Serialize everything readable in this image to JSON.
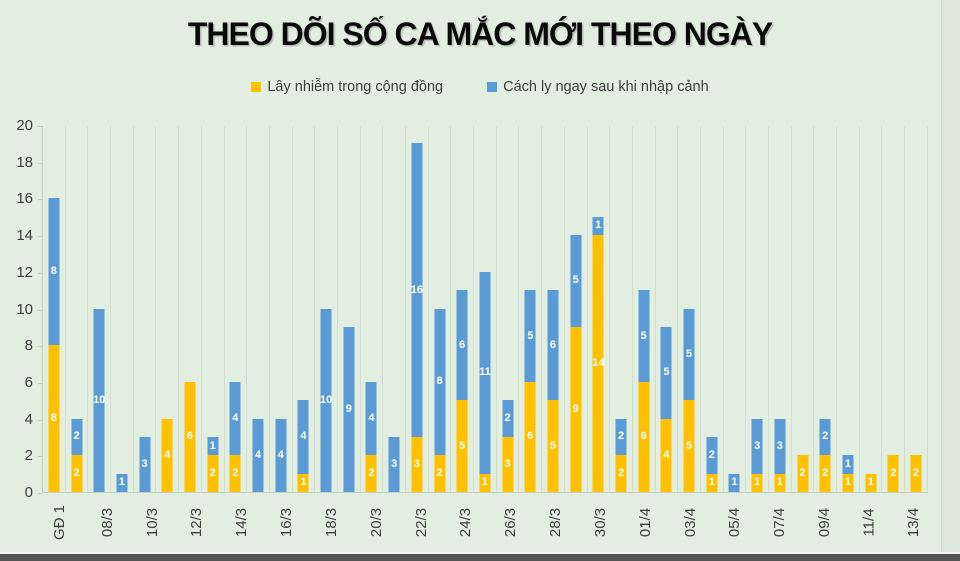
{
  "title": "THEO DÕI SỐ CA MẮC MỚI THEO NGÀY",
  "legend": [
    {
      "label": "Lây nhiễm trong cộng đồng",
      "color": "#FFC000"
    },
    {
      "label": "Cách ly ngay sau khi nhập cảnh",
      "color": "#5B9BD5"
    }
  ],
  "colors": {
    "background": "#e2efe0",
    "bar_community": "#FFC000",
    "bar_imported": "#5B9BD5",
    "gridline": "#d4dcd2",
    "axis_line": "#c3cdc1",
    "axis_text": "#3d3d3d",
    "title_text": "#0a0a0a",
    "segment_label_text": "#ffffff",
    "footer_bar": "#525252"
  },
  "chart_data": {
    "type": "bar",
    "stacked": true,
    "title": "THEO DÕI SỐ CA MẮC MỚI THEO NGÀY",
    "xlabel": "",
    "ylabel": "",
    "ylim": [
      0,
      20
    ],
    "yticks": [
      0,
      2,
      4,
      6,
      8,
      10,
      12,
      14,
      16,
      18,
      20
    ],
    "grid": "vertical-category-lines-only",
    "legend_position": "top",
    "x_tick_rotation": 90,
    "data_labels": "white value shown on every nonzero segment",
    "categories": [
      "GĐ 1",
      "",
      "08/3",
      "",
      "10/3",
      "",
      "12/3",
      "",
      "14/3",
      "",
      "16/3",
      "",
      "18/3",
      "",
      "20/3",
      "",
      "22/3",
      "",
      "24/3",
      "",
      "26/3",
      "",
      "28/3",
      "",
      "30/3",
      "",
      "01/4",
      "",
      "03/4",
      "",
      "05/4",
      "",
      "07/4",
      "",
      "09/4",
      "",
      "11/4",
      "",
      "13/4"
    ],
    "series": [
      {
        "name": "Lây nhiễm trong cộng đồng",
        "color": "#FFC000",
        "values": [
          8,
          2,
          0,
          0,
          0,
          4,
          6,
          2,
          2,
          0,
          0,
          1,
          0,
          0,
          2,
          0,
          3,
          2,
          5,
          1,
          3,
          6,
          5,
          9,
          14,
          2,
          6,
          4,
          5,
          1,
          0,
          1,
          1,
          2,
          2,
          1,
          1,
          2,
          2
        ]
      },
      {
        "name": "Cách ly ngay sau khi nhập cảnh",
        "color": "#5B9BD5",
        "values": [
          8,
          2,
          10,
          1,
          3,
          0,
          0,
          1,
          4,
          4,
          4,
          4,
          10,
          9,
          4,
          3,
          16,
          8,
          6,
          11,
          2,
          5,
          6,
          5,
          1,
          2,
          5,
          5,
          5,
          2,
          1,
          3,
          3,
          0,
          2,
          1,
          0,
          0,
          0
        ]
      }
    ]
  }
}
